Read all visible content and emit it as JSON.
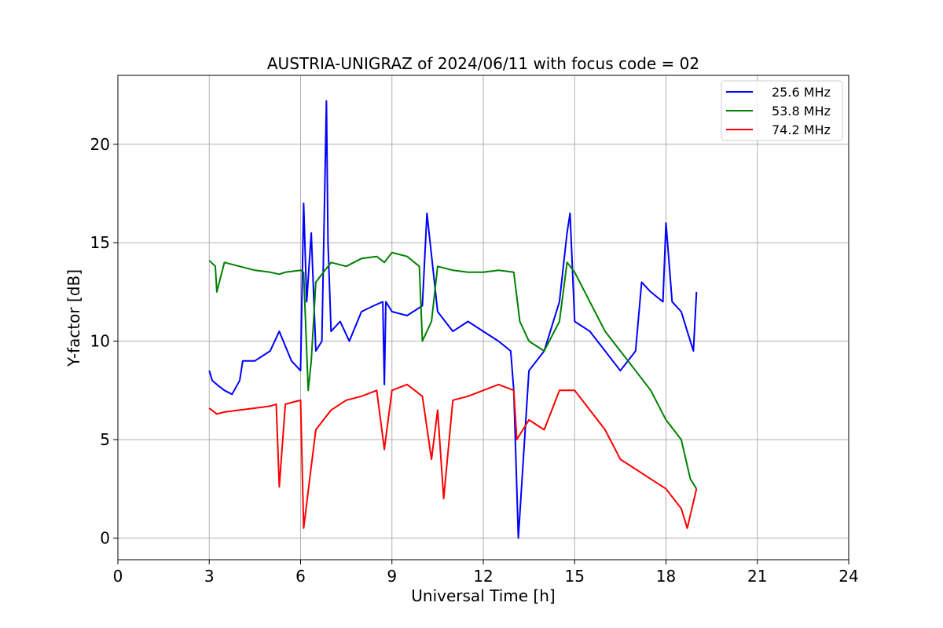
{
  "chart_data": {
    "type": "line",
    "title": "AUSTRIA-UNIGRAZ of 2024/06/11 with focus code = 02",
    "xlabel": "Universal Time [h]",
    "ylabel": "Y-factor [dB]",
    "xlim": [
      0,
      24
    ],
    "ylim": [
      -1.1,
      23.5
    ],
    "xticks": [
      0,
      3,
      6,
      9,
      12,
      15,
      18,
      21,
      24
    ],
    "yticks": [
      0,
      5,
      10,
      15,
      20
    ],
    "grid": true,
    "legend_position": "top-right",
    "series": [
      {
        "name": "25.6 MHz",
        "color": "#0000ff",
        "x": [
          3.0,
          3.1,
          3.25,
          3.5,
          3.75,
          4.0,
          4.1,
          4.5,
          5.0,
          5.3,
          5.7,
          6.0,
          6.1,
          6.2,
          6.35,
          6.5,
          6.7,
          6.85,
          6.9,
          7.0,
          7.3,
          7.6,
          8.0,
          8.4,
          8.7,
          8.75,
          8.8,
          9.0,
          9.5,
          10.0,
          10.15,
          10.5,
          11.0,
          11.5,
          12.0,
          12.5,
          12.9,
          13.0,
          13.15,
          13.5,
          14.0,
          14.5,
          14.75,
          14.85,
          15.0,
          15.5,
          16.0,
          16.5,
          17.0,
          17.2,
          17.5,
          17.9,
          18.0,
          18.2,
          18.5,
          18.7,
          18.9,
          19.0
        ],
        "y": [
          8.5,
          8.0,
          7.8,
          7.5,
          7.3,
          8.0,
          9.0,
          9.0,
          9.5,
          10.5,
          9.0,
          8.5,
          17.0,
          12.0,
          15.5,
          9.5,
          10.0,
          22.2,
          15.0,
          10.5,
          11.0,
          10.0,
          11.5,
          11.8,
          12.0,
          7.8,
          12.0,
          11.5,
          11.3,
          11.8,
          16.5,
          11.5,
          10.5,
          11.0,
          10.5,
          10.0,
          9.5,
          7.5,
          0.0,
          8.5,
          9.5,
          12.0,
          15.5,
          16.5,
          11.0,
          10.5,
          9.5,
          8.5,
          9.5,
          13.0,
          12.5,
          12.0,
          16.0,
          12.0,
          11.5,
          10.5,
          9.5,
          12.5
        ]
      },
      {
        "name": "53.8 MHz",
        "color": "#008000",
        "x": [
          3.0,
          3.2,
          3.25,
          3.5,
          4.0,
          4.5,
          5.0,
          5.3,
          5.5,
          6.0,
          6.1,
          6.25,
          6.35,
          6.5,
          7.0,
          7.5,
          8.0,
          8.5,
          8.75,
          9.0,
          9.5,
          9.9,
          10.0,
          10.3,
          10.5,
          11.0,
          11.5,
          12.0,
          12.5,
          13.0,
          13.2,
          13.5,
          14.0,
          14.5,
          14.75,
          15.0,
          15.5,
          16.0,
          16.5,
          17.0,
          17.5,
          18.0,
          18.5,
          18.8,
          19.0
        ],
        "y": [
          14.1,
          13.8,
          12.5,
          14.0,
          13.8,
          13.6,
          13.5,
          13.4,
          13.5,
          13.6,
          13.5,
          7.5,
          9.0,
          13.0,
          14.0,
          13.8,
          14.2,
          14.3,
          14.0,
          14.5,
          14.3,
          13.8,
          10.0,
          11.0,
          13.8,
          13.6,
          13.5,
          13.5,
          13.6,
          13.5,
          11.0,
          10.0,
          9.5,
          11.0,
          14.0,
          13.5,
          12.0,
          10.5,
          9.5,
          8.5,
          7.5,
          6.0,
          5.0,
          3.0,
          2.5
        ]
      },
      {
        "name": "74.2 MHz",
        "color": "#ff0000",
        "x": [
          3.0,
          3.25,
          3.5,
          4.0,
          4.5,
          5.0,
          5.2,
          5.3,
          5.5,
          6.0,
          6.1,
          6.3,
          6.5,
          7.0,
          7.5,
          8.0,
          8.5,
          8.75,
          9.0,
          9.5,
          10.0,
          10.3,
          10.5,
          10.7,
          11.0,
          11.5,
          12.0,
          12.5,
          13.0,
          13.1,
          13.5,
          14.0,
          14.5,
          15.0,
          15.5,
          16.0,
          16.5,
          17.0,
          17.5,
          18.0,
          18.5,
          18.7,
          19.0
        ],
        "y": [
          6.6,
          6.3,
          6.4,
          6.5,
          6.6,
          6.7,
          6.8,
          2.6,
          6.8,
          7.0,
          0.5,
          3.0,
          5.5,
          6.5,
          7.0,
          7.2,
          7.5,
          4.5,
          7.5,
          7.8,
          7.2,
          4.0,
          6.5,
          2.0,
          7.0,
          7.2,
          7.5,
          7.8,
          7.5,
          5.0,
          6.0,
          5.5,
          7.5,
          7.5,
          6.5,
          5.5,
          4.0,
          3.5,
          3.0,
          2.5,
          1.5,
          0.5,
          2.5
        ]
      }
    ]
  }
}
